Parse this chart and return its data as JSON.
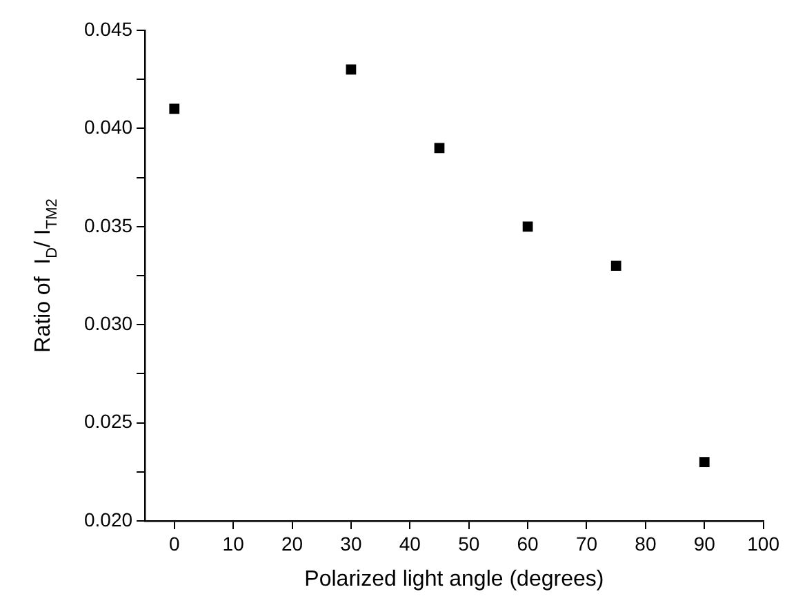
{
  "chart_data": {
    "type": "scatter",
    "xlabel": "Polarized light angle (degrees)",
    "ylabel": "Ratio of  I$_{D}$/ I$_{TM2}$",
    "x": [
      0,
      30,
      45,
      60,
      75,
      90
    ],
    "series": [
      {
        "color": "#000000",
        "values": [
          0.041,
          0.043,
          0.039,
          0.035,
          0.033,
          0.023
        ]
      }
    ],
    "xlim": [
      -5,
      100
    ],
    "xticks": [
      0,
      10,
      20,
      30,
      40,
      50,
      60,
      70,
      80,
      90,
      100
    ],
    "ylim": [
      0.02,
      0.045
    ],
    "yticks": [
      {
        "value": 0.02,
        "label": "0.020"
      },
      {
        "value": 0.0225,
        "label": null
      },
      {
        "value": 0.025,
        "label": "0.025"
      },
      {
        "value": 0.0275,
        "label": null
      },
      {
        "value": 0.03,
        "label": "0.030"
      },
      {
        "value": 0.0325,
        "label": null
      },
      {
        "value": 0.035,
        "label": "0.035"
      },
      {
        "value": 0.0375,
        "label": null
      },
      {
        "value": 0.04,
        "label": "0.040"
      },
      {
        "value": 0.0425,
        "label": null
      },
      {
        "value": 0.045,
        "label": "0.045"
      }
    ],
    "grid": false,
    "legend": false,
    "marker": "square"
  }
}
